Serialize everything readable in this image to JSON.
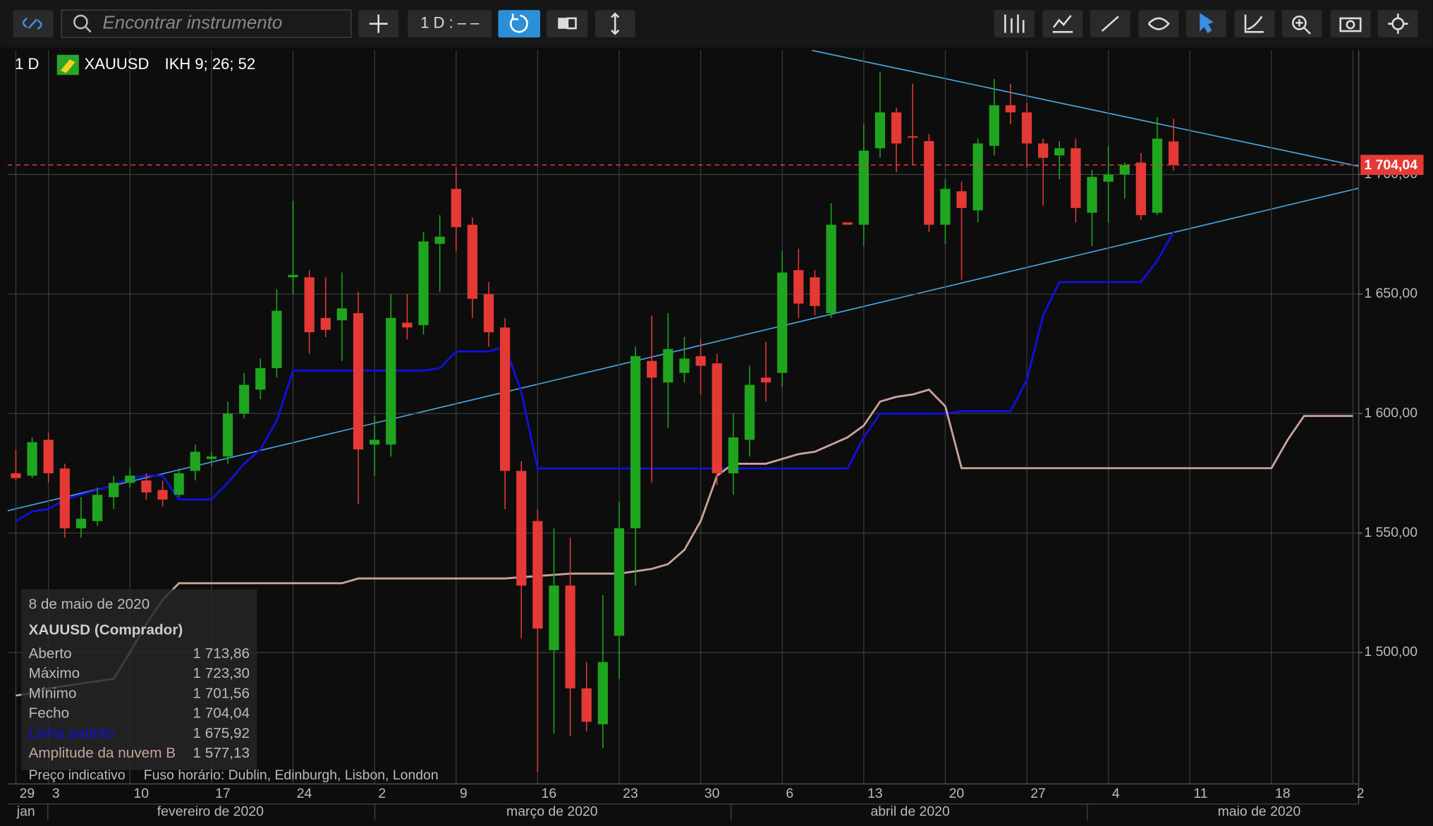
{
  "toolbar": {
    "search_placeholder": "Encontrar instrumento",
    "interval": "1 D : – –"
  },
  "legend": {
    "interval": "1 D",
    "symbol": "XAUUSD",
    "indicator": "IKH 9; 26; 52"
  },
  "tooltip": {
    "date": "8 de maio de 2020",
    "title": "XAUUSD (Comprador)",
    "rows": [
      {
        "label": "Aberto",
        "value": "1 713,86"
      },
      {
        "label": "Máximo",
        "value": "1 723,30"
      },
      {
        "label": "Mínimo",
        "value": "1 701,56"
      },
      {
        "label": "Fecho",
        "value": "1 704,04"
      },
      {
        "label": "Linha padrão",
        "value": "1 675,92"
      },
      {
        "label": "Amplitude da nuvem B",
        "value": "1 577,13"
      }
    ]
  },
  "footer": {
    "price_note": "Preço indicativo",
    "timezone": "Fuso horário: Dublin, Edinburgh, Lisbon, London"
  },
  "chart_data": {
    "type": "candlestick",
    "categories": [
      "29",
      null,
      "3",
      null,
      null,
      null,
      null,
      "10",
      null,
      null,
      null,
      null,
      "17",
      null,
      null,
      null,
      null,
      "24",
      null,
      null,
      null,
      null,
      "2",
      null,
      null,
      null,
      null,
      "9",
      null,
      null,
      null,
      null,
      "16",
      null,
      null,
      null,
      null,
      "23",
      null,
      null,
      null,
      null,
      "30",
      null,
      null,
      null,
      null,
      "6",
      null,
      null,
      null,
      null,
      "13",
      null,
      null,
      null,
      null,
      "20",
      null,
      null,
      null,
      null,
      "27",
      null,
      null,
      null,
      null,
      "4",
      null,
      null,
      null,
      null,
      "11",
      null,
      null,
      null,
      null,
      "18",
      null,
      null,
      null,
      null,
      "2"
    ],
    "month_labels": [
      "jan",
      "fevereiro de 2020",
      "março de 2020",
      "abril de 2020",
      "maio de 2020"
    ],
    "open": [
      1575,
      1574,
      1589,
      1577,
      1552,
      1555,
      1565,
      1571,
      1572,
      1568,
      1566,
      1576,
      1581,
      1582,
      1600,
      1610,
      1619,
      1657,
      1657,
      1640,
      1639,
      1642,
      1587,
      1587,
      1638,
      1637,
      1671,
      1694,
      1679,
      1650,
      1636,
      1576,
      1555,
      1501,
      1528,
      1485,
      1470,
      1507,
      1552,
      1622,
      1613,
      1617,
      1624,
      1621,
      1575,
      1589,
      1615,
      1617,
      1660,
      1657,
      1642,
      1680,
      1679,
      1711,
      1726,
      1716,
      1714,
      1679,
      1693,
      1685,
      1712,
      1729,
      1726,
      1713,
      1708,
      1711,
      1684,
      1697,
      1700,
      1705,
      1684,
      1713.86,
      null,
      null,
      null,
      null,
      null,
      null,
      null,
      null,
      null,
      null,
      null
    ],
    "high": [
      1585,
      1590,
      1592,
      1579,
      1565,
      1569,
      1574,
      1577,
      1575,
      1572,
      1577,
      1587,
      1584,
      1605,
      1617,
      1623,
      1652,
      1689,
      1660,
      1657,
      1659,
      1651,
      1599,
      1650,
      1650,
      1676,
      1683,
      1703,
      1682,
      1655,
      1640,
      1580,
      1560,
      1552,
      1548,
      1496,
      1524,
      1563,
      1628,
      1641,
      1642,
      1632,
      1631,
      1625,
      1600,
      1620,
      1630,
      1668,
      1669,
      1660,
      1688,
      1680,
      1721,
      1743,
      1728,
      1738,
      1717,
      1698,
      1697,
      1715,
      1740,
      1738,
      1730,
      1715,
      1714,
      1715,
      1702,
      1712,
      1705,
      1709,
      1724,
      1723.3,
      null,
      null,
      null,
      null,
      null,
      null,
      null,
      null,
      null,
      null,
      null
    ],
    "low": [
      1572,
      1573,
      1571,
      1548,
      1548,
      1553,
      1560,
      1569,
      1564,
      1561,
      1565,
      1572,
      1578,
      1579,
      1598,
      1606,
      1615,
      1650,
      1625,
      1632,
      1622,
      1562,
      1574,
      1582,
      1631,
      1633,
      1651,
      1668,
      1640,
      1628,
      1560,
      1506,
      1450,
      1466,
      1465,
      1467,
      1460,
      1489,
      1528,
      1571,
      1594,
      1613,
      1608,
      1570,
      1566,
      1582,
      1605,
      1611,
      1640,
      1641,
      1640,
      1679,
      1670,
      1707,
      1701,
      1704,
      1676,
      1671,
      1656,
      1680,
      1708,
      1721,
      1703,
      1687,
      1698,
      1680,
      1670,
      1680,
      1690,
      1681,
      1683,
      1701.56,
      null,
      null,
      null,
      null,
      null,
      null,
      null,
      null,
      null,
      null,
      null
    ],
    "close": [
      1573,
      1588,
      1575,
      1552,
      1556,
      1566,
      1571,
      1574,
      1567,
      1564,
      1575,
      1584,
      1582,
      1600,
      1612,
      1619,
      1643,
      1658,
      1634,
      1635,
      1644,
      1585,
      1589,
      1640,
      1636,
      1672,
      1674,
      1678,
      1648,
      1634,
      1576,
      1528,
      1510,
      1528,
      1485,
      1471,
      1496,
      1552,
      1624,
      1615,
      1627,
      1623,
      1620,
      1575,
      1590,
      1612,
      1613,
      1659,
      1646,
      1645,
      1679,
      1679,
      1710,
      1726,
      1713,
      1715.5,
      1679,
      1694,
      1686,
      1713,
      1729,
      1726,
      1713,
      1707,
      1711,
      1686,
      1699,
      1700,
      1704,
      1683,
      1715,
      1704.04,
      null,
      null,
      null,
      null,
      null,
      null,
      null,
      null,
      null,
      null,
      null
    ],
    "up_color": "#1fa51f",
    "down_color": "#e53935",
    "series": [
      {
        "name": "Linha padrão",
        "color": "#1010e0",
        "values": [
          1555,
          1559,
          1560,
          1564,
          1566,
          1568,
          1570,
          1573,
          1574,
          1574,
          1564,
          1564,
          1564,
          1571,
          1579,
          1585,
          1597,
          1618,
          1618,
          1618,
          1618,
          1618,
          1618,
          1618,
          1618,
          1618,
          1619,
          1626,
          1626,
          1626,
          1628,
          1609,
          1577,
          1577,
          1577,
          1577,
          1577,
          1577,
          1577,
          1577,
          1577,
          1577,
          1577,
          1577,
          1577,
          1577,
          1577,
          1577,
          1577,
          1577,
          1577,
          1577,
          1590,
          1600,
          1600,
          1600,
          1600,
          1600,
          1601,
          1601,
          1601,
          1601,
          1614,
          1641,
          1655,
          1655,
          1655,
          1655,
          1655,
          1655,
          1664,
          1675.92,
          null,
          null,
          null,
          null,
          null,
          null,
          null,
          null,
          null,
          null,
          null
        ]
      },
      {
        "name": "Amplitude da nuvem B",
        "color": "#c9a29c",
        "values": [
          1482,
          1483,
          1485,
          1486,
          1487,
          1488,
          1489,
          1500,
          1512,
          1522,
          1529,
          1529,
          1529,
          1529,
          1529,
          1529,
          1529,
          1529,
          1529,
          1529,
          1529,
          1531,
          1531,
          1531,
          1531,
          1531,
          1531,
          1531,
          1531,
          1531,
          1531,
          1531.5,
          1532,
          1532.5,
          1533,
          1533,
          1533,
          1533,
          1534,
          1535,
          1537,
          1543,
          1555,
          1574,
          1579,
          1579,
          1579,
          1581,
          1583,
          1584,
          1587,
          1590,
          1595,
          1605,
          1607,
          1608,
          1610,
          1603,
          1577.13,
          1577.13,
          1577.13,
          1577.13,
          1577.13,
          1577.13,
          1577.13,
          1577.13,
          1577.13,
          1577.13,
          1577.13,
          1577.13,
          1577.13,
          1577.13,
          1577.13,
          1577.13,
          1577.13,
          1577.13,
          1577.13,
          1577.13,
          1589,
          1599,
          1599,
          1599,
          1599
        ]
      }
    ],
    "current_price": {
      "value": 1704.04,
      "label": "1 704,04"
    },
    "ylim": [
      1445,
      1752
    ],
    "yticks": [
      {
        "value": 1500,
        "label": "1 500,00"
      },
      {
        "value": 1550,
        "label": "1 550,00"
      },
      {
        "value": 1600,
        "label": "1 600,00"
      },
      {
        "value": 1650,
        "label": "1 650,00"
      },
      {
        "value": 1700,
        "label": "1 700,00"
      }
    ],
    "grid": true
  }
}
